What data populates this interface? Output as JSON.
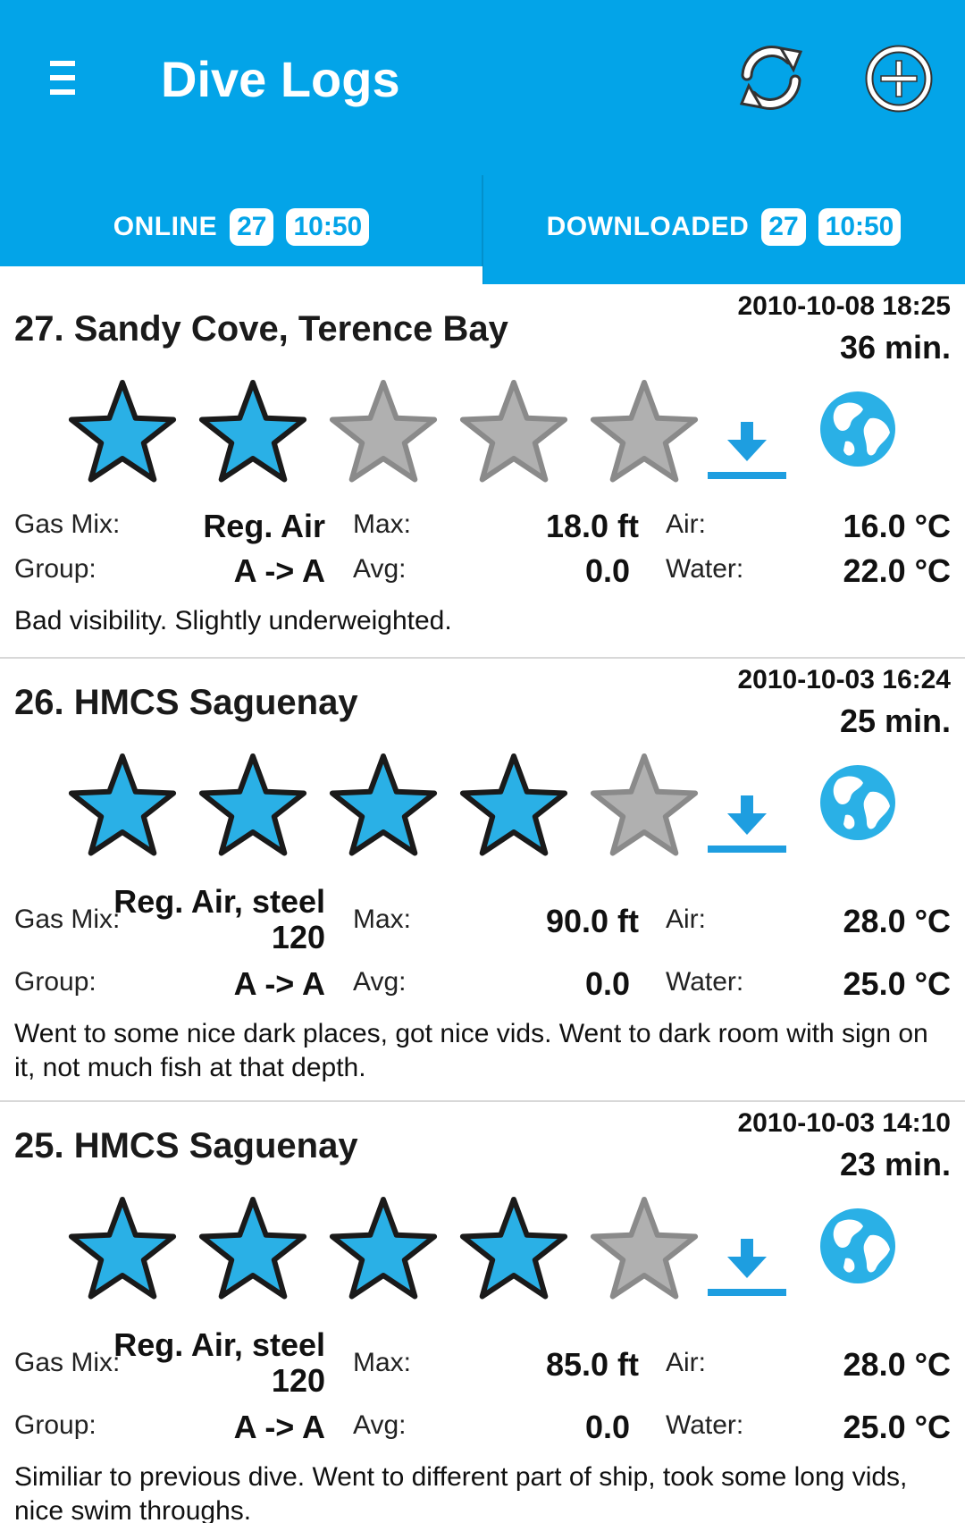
{
  "app_bar": {
    "title": "Dive Logs",
    "icons": [
      "menu-icon",
      "sync-icon",
      "add-circle-icon"
    ],
    "color": "#03a4e8"
  },
  "tabs": [
    {
      "label": "ONLINE",
      "count": "27",
      "time": "10:50",
      "selected": true
    },
    {
      "label": "DOWNLOADED",
      "count": "27",
      "time": "10:50",
      "selected": false
    }
  ],
  "labels": {
    "gas_mix": "Gas Mix:",
    "group": "Group:",
    "max": "Max:",
    "avg": "Avg:",
    "air": "Air:",
    "water": "Water:"
  },
  "logs": [
    {
      "title": "27. Sandy Cove, Terence Bay",
      "date": "2010-10-08 18:25",
      "duration": "36 min.",
      "rating": 2,
      "gas_mix": "Reg. Air",
      "group": "A -> A",
      "max": "18.0 ft",
      "avg": "0.0",
      "air": "16.0 °C",
      "water": "22.0 °C",
      "note": "Bad visibility. Slightly underweighted."
    },
    {
      "title": "26. HMCS Saguenay",
      "date": "2010-10-03 16:24",
      "duration": "25 min.",
      "rating": 4,
      "gas_mix_line1": "Reg. Air, steel",
      "gas_mix_line2": "120",
      "group": "A -> A",
      "max": "90.0 ft",
      "avg": "0.0",
      "air": "28.0 °C",
      "water": "25.0 °C",
      "note": "Went to some nice dark places, got nice vids. Went to dark room with sign on it, not much fish at that depth."
    },
    {
      "title": "25. HMCS Saguenay",
      "date": "2010-10-03 14:10",
      "duration": "23 min.",
      "rating": 4,
      "gas_mix_line1": "Reg. Air, steel",
      "gas_mix_line2": "120",
      "group": "A -> A",
      "max": "85.0 ft",
      "avg": "0.0",
      "air": "28.0 °C",
      "water": "25.0 °C",
      "note": "Similiar to previous dive. Went to different part of ship, took some long vids, nice swim throughs."
    }
  ],
  "star_colors": {
    "filled": "#2ab0e6",
    "empty": "#b0b0b0",
    "outline": "#1a1a1a"
  }
}
